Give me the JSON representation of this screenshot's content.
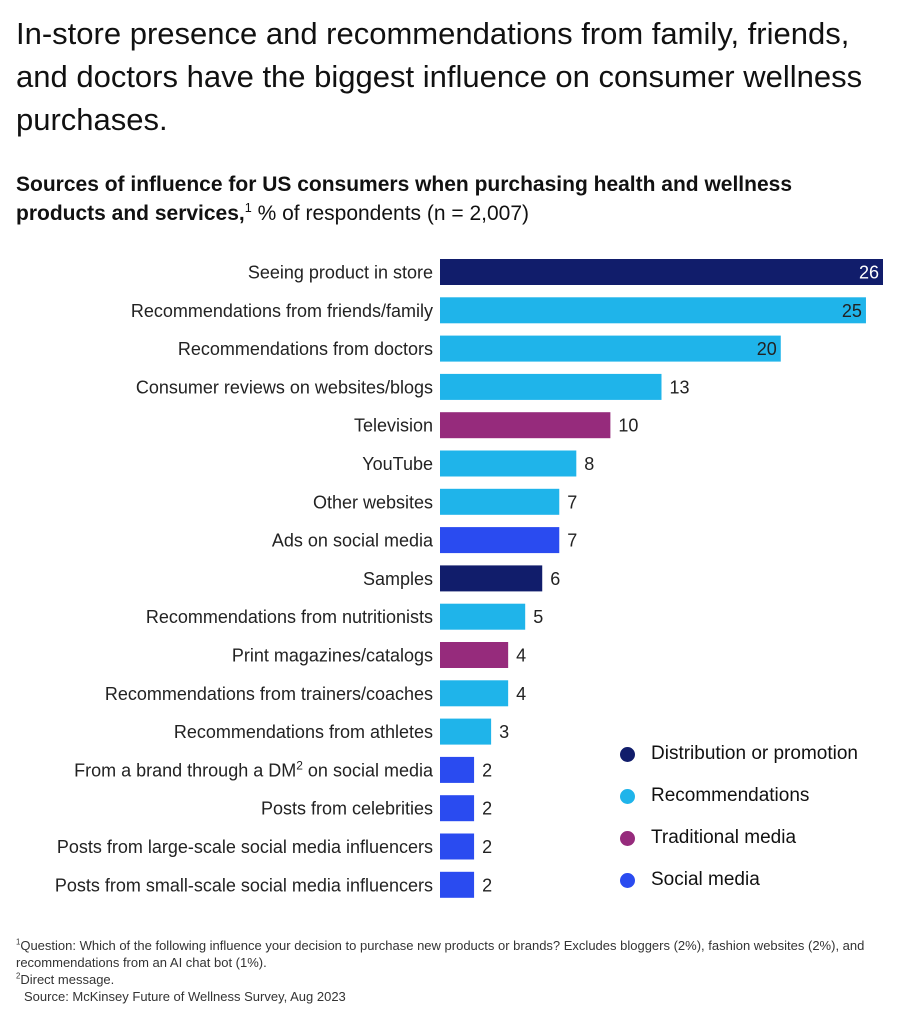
{
  "headline": "In-store presence and recommendations from family, friends, and doctors have the biggest influence on consumer wellness purchases.",
  "subtitle": {
    "bold": "Sources of influence for US consumers when purchasing health and wellness products and services,",
    "sup": "1",
    "rest": " % of respondents (n = 2,007)"
  },
  "colors": {
    "distribution": "#111d6b",
    "recommendations": "#1fb4ea",
    "traditional": "#962b7c",
    "social": "#2a4bf0"
  },
  "chart_data": {
    "type": "bar",
    "orientation": "horizontal",
    "xlim": [
      0,
      26
    ],
    "categories": [
      "Seeing product in store",
      "Recommendations from friends/family",
      "Recommendations from doctors",
      "Consumer reviews on websites/blogs",
      "Television",
      "YouTube",
      "Other websites",
      "Ads on social media",
      "Samples",
      "Recommendations from nutritionists",
      "Print magazines/catalogs",
      "Recommendations from trainers/coaches",
      "Recommendations from athletes",
      "From a brand through a DM",
      "Posts from celebrities",
      "Posts from large-scale social media influencers",
      "Posts from small-scale social media influencers"
    ],
    "label_suffix": [
      "",
      "",
      "",
      "",
      "",
      "",
      "",
      "",
      "",
      "",
      "",
      "",
      "",
      "on social media",
      "",
      "",
      ""
    ],
    "label_sup": [
      "",
      "",
      "",
      "",
      "",
      "",
      "",
      "",
      "",
      "",
      "",
      "",
      "",
      "2",
      "",
      "",
      ""
    ],
    "values": [
      26,
      25,
      20,
      13,
      10,
      8,
      7,
      7,
      6,
      5,
      4,
      4,
      3,
      2,
      2,
      2,
      2
    ],
    "groups": [
      "distribution",
      "recommendations",
      "recommendations",
      "recommendations",
      "traditional",
      "recommendations",
      "recommendations",
      "social",
      "distribution",
      "recommendations",
      "traditional",
      "recommendations",
      "recommendations",
      "social",
      "social",
      "social",
      "social"
    ],
    "value_label_inside": [
      true,
      true,
      true,
      false,
      false,
      false,
      false,
      false,
      false,
      false,
      false,
      false,
      false,
      false,
      false,
      false,
      false
    ],
    "legend": [
      {
        "key": "distribution",
        "label": "Distribution or promotion"
      },
      {
        "key": "recommendations",
        "label": "Recommendations"
      },
      {
        "key": "traditional",
        "label": "Traditional media"
      },
      {
        "key": "social",
        "label": "Social media"
      }
    ]
  },
  "footnotes": {
    "note1_sup": "1",
    "note1": "Question: Which of the following influence your decision to purchase new products or brands? Excludes bloggers (2%), fashion websites (2%), and recommendations from an AI chat bot (1%).",
    "note2_sup": "2",
    "note2": "Direct message.",
    "source": "Source: McKinsey Future of Wellness Survey, Aug 2023"
  }
}
